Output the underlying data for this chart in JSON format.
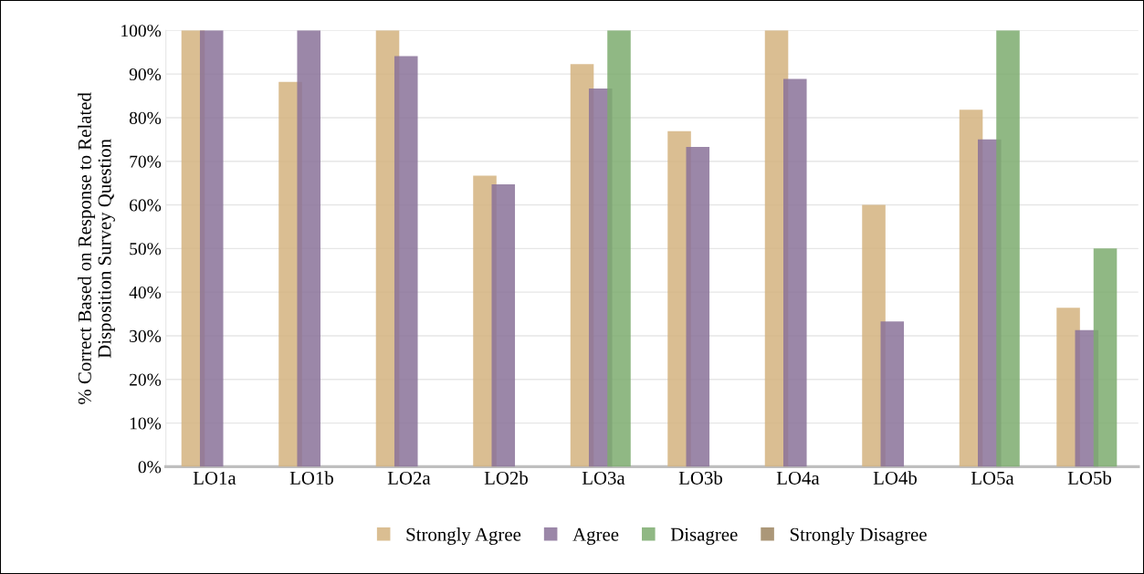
{
  "chart_data": {
    "type": "bar",
    "ylabel": "% Correct Based on Response to Related\nDisposition Survey Question",
    "categories": [
      "LO1a",
      "LO1b",
      "LO2a",
      "LO2b",
      "LO3a",
      "LO3b",
      "LO4a",
      "LO4b",
      "LO5a",
      "LO5b"
    ],
    "series": [
      {
        "name": "Strongly Agree",
        "color": "#d4b37f",
        "values": [
          100,
          88.2,
          100,
          66.7,
          92.3,
          76.9,
          100,
          60,
          81.8,
          36.4
        ]
      },
      {
        "name": "Agree",
        "color": "#8a7299",
        "values": [
          100,
          100,
          94.1,
          64.7,
          86.7,
          73.3,
          88.9,
          33.3,
          75,
          31.3
        ]
      },
      {
        "name": "Disagree",
        "color": "#7dab6e",
        "values": [
          null,
          null,
          null,
          null,
          100,
          null,
          null,
          null,
          100,
          50
        ]
      },
      {
        "name": "Strongly Disagree",
        "color": "#9c8560",
        "values": [
          null,
          null,
          null,
          null,
          null,
          null,
          null,
          null,
          null,
          null
        ]
      }
    ],
    "ylim": [
      0,
      100
    ],
    "yticks": [
      {
        "value": 0,
        "label": "0%"
      },
      {
        "value": 10,
        "label": "10%"
      },
      {
        "value": 20,
        "label": "20%"
      },
      {
        "value": 30,
        "label": "30%"
      },
      {
        "value": 40,
        "label": "40%"
      },
      {
        "value": 50,
        "label": "50%"
      },
      {
        "value": 60,
        "label": "60%"
      },
      {
        "value": 70,
        "label": "70%"
      },
      {
        "value": 80,
        "label": "80%"
      },
      {
        "value": 90,
        "label": "90%"
      },
      {
        "value": 100,
        "label": "100%"
      }
    ],
    "grid": "y",
    "legend": "bottom"
  }
}
